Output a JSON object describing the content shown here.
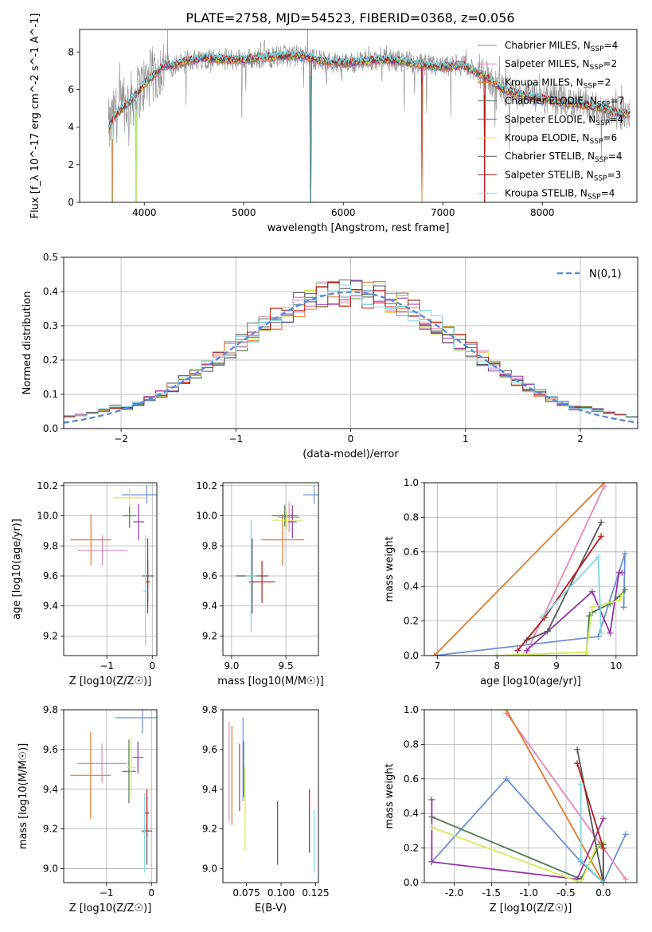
{
  "figure_title": "PLATE=2758, MJD=54523, FIBERID=0368, z=0.056",
  "legend_entries": [
    {
      "name": "Chabrier MILES",
      "nssp": "4",
      "color": "#6b8fd6"
    },
    {
      "name": "Salpeter MILES",
      "nssp": "2",
      "color": "#e887b4"
    },
    {
      "name": "Kroupa MILES",
      "nssp": "2",
      "color": "#e07b2c"
    },
    {
      "name": "Chabrier ELODIE",
      "nssp": "7",
      "color": "#4f7a52"
    },
    {
      "name": "Salpeter ELODIE",
      "nssp": "4",
      "color": "#9234a8"
    },
    {
      "name": "Kroupa ELODIE",
      "nssp": "6",
      "color": "#d4ec5c"
    },
    {
      "name": "Chabrier STELIB",
      "nssp": "4",
      "color": "#555555"
    },
    {
      "name": "Salpeter STELIB",
      "nssp": "3",
      "color": "#b71c1c"
    },
    {
      "name": "Kroupa STELIB",
      "nssp": "4",
      "color": "#7ed8e0"
    }
  ],
  "data_color": "#8a8a8a",
  "chart_data": [
    {
      "id": "spectrum",
      "type": "line",
      "xlabel": "wavelength [Angstrom, rest frame]",
      "ylabel": "Flux [f_λ 10^-17 erg cm^-2 s^-1 A^-1]",
      "xlim": [
        3350,
        8950
      ],
      "ylim": [
        0,
        9.2
      ],
      "xticks": [
        4000,
        5000,
        6000,
        7000,
        8000
      ],
      "yticks": [
        0,
        2,
        4,
        6,
        8
      ],
      "grid": false,
      "legend": "top-right",
      "continuum": {
        "x": [
          3640,
          3700,
          3800,
          3900,
          4000,
          4100,
          4200,
          4300,
          4400,
          4500,
          4600,
          4800,
          5000,
          5200,
          5400,
          5600,
          5800,
          6000,
          6200,
          6400,
          6600,
          6800,
          7000,
          7200,
          7300,
          7400,
          7500,
          7600,
          7800,
          8000,
          8200,
          8400,
          8600,
          8800
        ],
        "y": [
          3.9,
          4.6,
          5.1,
          5.6,
          6.3,
          6.8,
          7.3,
          7.3,
          7.5,
          7.6,
          7.7,
          7.6,
          7.6,
          7.7,
          7.8,
          7.8,
          7.5,
          7.4,
          7.5,
          7.6,
          7.5,
          7.3,
          7.2,
          7.3,
          7.0,
          6.8,
          6.4,
          6.0,
          5.7,
          5.5,
          5.3,
          5.2,
          5.0,
          4.7
        ]
      },
      "dips": [
        {
          "x": 3680,
          "y": 0
        },
        {
          "x": 3920,
          "y": 0
        },
        {
          "x": 5670,
          "y": 0
        },
        {
          "x": 6790,
          "y": 0
        },
        {
          "x": 7420,
          "y": 0
        }
      ]
    },
    {
      "id": "residuals",
      "type": "line",
      "xlabel": "(data-model)/error",
      "ylabel": "Normed distribution",
      "xlim": [
        -2.5,
        2.5
      ],
      "ylim": [
        0,
        0.5
      ],
      "xticks": [
        -2,
        -1,
        0,
        1,
        2
      ],
      "yticks": [
        0,
        0.1,
        0.2,
        0.3,
        0.4,
        0.5
      ],
      "grid": true,
      "legend": "top-right",
      "gaussian_label": "N(0,1)",
      "gaussian_color": "#5b8bd9",
      "bin_width": 0.1
    },
    {
      "id": "age_vs_Z",
      "type": "scatter",
      "xlabel": "Z [log10(Z/Z☉)]",
      "ylabel": "age  [log10(age/yr)]",
      "xlim": [
        -1.95,
        0.1
      ],
      "ylim": [
        9.07,
        10.22
      ],
      "xticks": [
        -1,
        0
      ],
      "yticks": [
        9.2,
        9.4,
        9.6,
        9.8,
        10.0,
        10.2
      ],
      "grid": true,
      "points": [
        {
          "x": -0.12,
          "y": 10.14,
          "xerr": 0.55,
          "yerr": 0.06
        },
        {
          "x": -1.1,
          "y": 9.77,
          "xerr": 0.55,
          "yerr": 0.1
        },
        {
          "x": -1.35,
          "y": 9.84,
          "xerr": 0.45,
          "yerr": 0.17
        },
        {
          "x": -0.5,
          "y": 10.0,
          "xerr": 0.15,
          "yerr": 0.08
        },
        {
          "x": -0.3,
          "y": 9.96,
          "xerr": 0.12,
          "yerr": 0.12
        },
        {
          "x": -0.5,
          "y": 10.12,
          "xerr": 0.35,
          "yerr": 0.06
        },
        {
          "x": -0.1,
          "y": 9.6,
          "xerr": 0.12,
          "yerr": 0.25
        },
        {
          "x": -0.1,
          "y": 9.56,
          "xerr": 0.05,
          "yerr": 0.14
        },
        {
          "x": -0.15,
          "y": 9.5,
          "xerr": 0.05,
          "yerr": 0.37
        }
      ]
    },
    {
      "id": "age_vs_mass",
      "type": "scatter",
      "xlabel": "mass [log10(M/M☉)]",
      "ylabel": "",
      "xlim": [
        8.92,
        9.8
      ],
      "ylim": [
        9.07,
        10.22
      ],
      "xticks": [
        9.0,
        9.5
      ],
      "yticks": [
        9.2,
        9.4,
        9.6,
        9.8,
        10.0,
        10.2
      ],
      "grid": true,
      "points": [
        {
          "x": 9.76,
          "y": 10.14,
          "xerr": 0.1,
          "yerr": 0.06
        },
        {
          "x": 9.53,
          "y": 9.99,
          "xerr": 0.1,
          "yerr": 0.1
        },
        {
          "x": 9.47,
          "y": 9.84,
          "xerr": 0.2,
          "yerr": 0.17
        },
        {
          "x": 9.49,
          "y": 10.0,
          "xerr": 0.12,
          "yerr": 0.07
        },
        {
          "x": 9.56,
          "y": 9.96,
          "xerr": 0.04,
          "yerr": 0.11
        },
        {
          "x": 9.51,
          "y": 9.97,
          "xerr": 0.14,
          "yerr": 0.06
        },
        {
          "x": 9.19,
          "y": 9.6,
          "xerr": 0.15,
          "yerr": 0.25
        },
        {
          "x": 9.28,
          "y": 9.56,
          "xerr": 0.12,
          "yerr": 0.14
        },
        {
          "x": 9.18,
          "y": 9.6,
          "xerr": 0.05,
          "yerr": 0.37
        }
      ]
    },
    {
      "id": "weight_vs_age",
      "type": "line",
      "xlabel": "age  [log10(age/yr)]",
      "ylabel": "mass weight",
      "xlim": [
        6.78,
        10.35
      ],
      "ylim": [
        0,
        1.0
      ],
      "xticks": [
        7,
        8,
        9,
        10
      ],
      "yticks": [
        0,
        0.2,
        0.4,
        0.6,
        0.8,
        1.0
      ],
      "grid": true,
      "series": [
        {
          "x": [
            6.95,
            9.7,
            10.15,
            10.13
          ],
          "y": [
            0.0,
            0.11,
            0.59,
            0.28
          ]
        },
        {
          "x": [
            8.5,
            9.8
          ],
          "y": [
            0.02,
            0.98
          ]
        },
        {
          "x": [
            6.95,
            9.8
          ],
          "y": [
            0.0,
            1.0
          ]
        },
        {
          "x": [
            8.0,
            9.5,
            9.55,
            9.6,
            9.9,
            10.05,
            10.15
          ],
          "y": [
            0.0,
            0.0,
            0.23,
            0.25,
            0.3,
            0.34,
            0.38
          ]
        },
        {
          "x": [
            8.5,
            9.6,
            9.9,
            10.05,
            10.1
          ],
          "y": [
            0.03,
            0.37,
            0.13,
            0.48,
            0.48
          ]
        },
        {
          "x": [
            8.0,
            9.5,
            9.6,
            10.05,
            10.1
          ],
          "y": [
            0.0,
            0.02,
            0.28,
            0.32,
            0.35
          ]
        },
        {
          "x": [
            8.5,
            8.85,
            9.75
          ],
          "y": [
            0.09,
            0.14,
            0.77
          ]
        },
        {
          "x": [
            8.35,
            8.8,
            9.75
          ],
          "y": [
            0.03,
            0.22,
            0.69
          ]
        },
        {
          "x": [
            8.75,
            9.7,
            9.75
          ],
          "y": [
            0.22,
            0.57,
            0.13
          ]
        }
      ]
    },
    {
      "id": "mass_vs_Z",
      "type": "scatter",
      "xlabel": "Z [log10(Z/Z☉)]",
      "ylabel": "mass [log10(M/M☉)]",
      "xlim": [
        -1.95,
        0.12
      ],
      "ylim": [
        8.93,
        9.8
      ],
      "xticks": [
        -1,
        0
      ],
      "yticks": [
        9.0,
        9.2,
        9.4,
        9.6,
        9.8
      ],
      "grid": true,
      "points": [
        {
          "x": -0.2,
          "y": 9.76,
          "xerr": 0.6,
          "yerr": 0.08
        },
        {
          "x": -1.1,
          "y": 9.53,
          "xerr": 0.55,
          "yerr": 0.1
        },
        {
          "x": -1.35,
          "y": 9.47,
          "xerr": 0.45,
          "yerr": 0.22
        },
        {
          "x": -0.5,
          "y": 9.49,
          "xerr": 0.15,
          "yerr": 0.16
        },
        {
          "x": -0.3,
          "y": 9.56,
          "xerr": 0.12,
          "yerr": 0.08
        },
        {
          "x": -0.45,
          "y": 9.51,
          "xerr": 0.1,
          "yerr": 0.15
        },
        {
          "x": -0.1,
          "y": 9.19,
          "xerr": 0.12,
          "yerr": 0.17
        },
        {
          "x": -0.1,
          "y": 9.28,
          "xerr": 0.05,
          "yerr": 0.12
        },
        {
          "x": -0.15,
          "y": 9.18,
          "xerr": 0.05,
          "yerr": 0.2
        }
      ]
    },
    {
      "id": "mass_vs_ebv",
      "type": "scatter",
      "xlabel": "E(B-V)",
      "ylabel": "",
      "xlim": [
        0.058,
        0.127
      ],
      "ylim": [
        8.93,
        9.8
      ],
      "xticks": [
        0.075,
        0.1,
        0.125
      ],
      "yticks": [
        9.0,
        9.2,
        9.4,
        9.6,
        9.8
      ],
      "grid": false,
      "points": [
        {
          "x": 0.0725,
          "y": 9.55,
          "yerr": 0.21
        },
        {
          "x": 0.0625,
          "y": 9.49,
          "yerr": 0.25
        },
        {
          "x": 0.0645,
          "y": 9.47,
          "yerr": 0.25
        },
        {
          "x": 0.073,
          "y": 9.5,
          "yerr": 0.14
        },
        {
          "x": 0.07,
          "y": 9.46,
          "yerr": 0.17
        },
        {
          "x": 0.074,
          "y": 9.3,
          "yerr": 0.21
        },
        {
          "x": 0.0975,
          "y": 9.18,
          "yerr": 0.16
        },
        {
          "x": 0.1205,
          "y": 9.24,
          "yerr": 0.16
        },
        {
          "x": 0.124,
          "y": 9.14,
          "yerr": 0.16
        }
      ]
    },
    {
      "id": "weight_vs_Z",
      "type": "line",
      "xlabel": "Z [log10(Z/Z☉)]",
      "ylabel": "mass weight",
      "xlim": [
        -2.4,
        0.45
      ],
      "ylim": [
        0,
        1.0
      ],
      "xticks": [
        -2.0,
        -1.5,
        -1.0,
        -0.5,
        0.0
      ],
      "yticks": [
        0,
        0.2,
        0.4,
        0.6,
        0.8,
        1.0
      ],
      "grid": true,
      "series": [
        {
          "x": [
            -2.3,
            -1.3,
            -0.3,
            0.0,
            0.3
          ],
          "y": [
            0.12,
            0.6,
            0.12,
            0.0,
            0.28
          ]
        },
        {
          "x": [
            -1.3,
            0.0,
            0.3
          ],
          "y": [
            0.98,
            0.2,
            0.02
          ]
        },
        {
          "x": [
            -1.3,
            0.0
          ],
          "y": [
            1.0,
            0.0
          ]
        },
        {
          "x": [
            -2.3,
            -0.3,
            -0.05,
            0.0,
            0.0
          ],
          "y": [
            0.38,
            0.02,
            0.22,
            0.2,
            0.0
          ]
        },
        {
          "x": [
            -2.3,
            -2.3,
            -0.35,
            0.0
          ],
          "y": [
            0.48,
            0.12,
            0.02,
            0.37
          ]
        },
        {
          "x": [
            -2.3,
            -0.3,
            -0.1,
            0.0
          ],
          "y": [
            0.32,
            0.0,
            0.2,
            0.23
          ]
        },
        {
          "x": [
            -0.35,
            0.0,
            0.0
          ],
          "y": [
            0.77,
            0.0,
            0.22
          ]
        },
        {
          "x": [
            -0.35,
            0.0
          ],
          "y": [
            0.69,
            0.2
          ]
        },
        {
          "x": [
            -0.3,
            -0.3,
            0.0
          ],
          "y": [
            0.57,
            0.13,
            0.0
          ]
        }
      ]
    }
  ]
}
